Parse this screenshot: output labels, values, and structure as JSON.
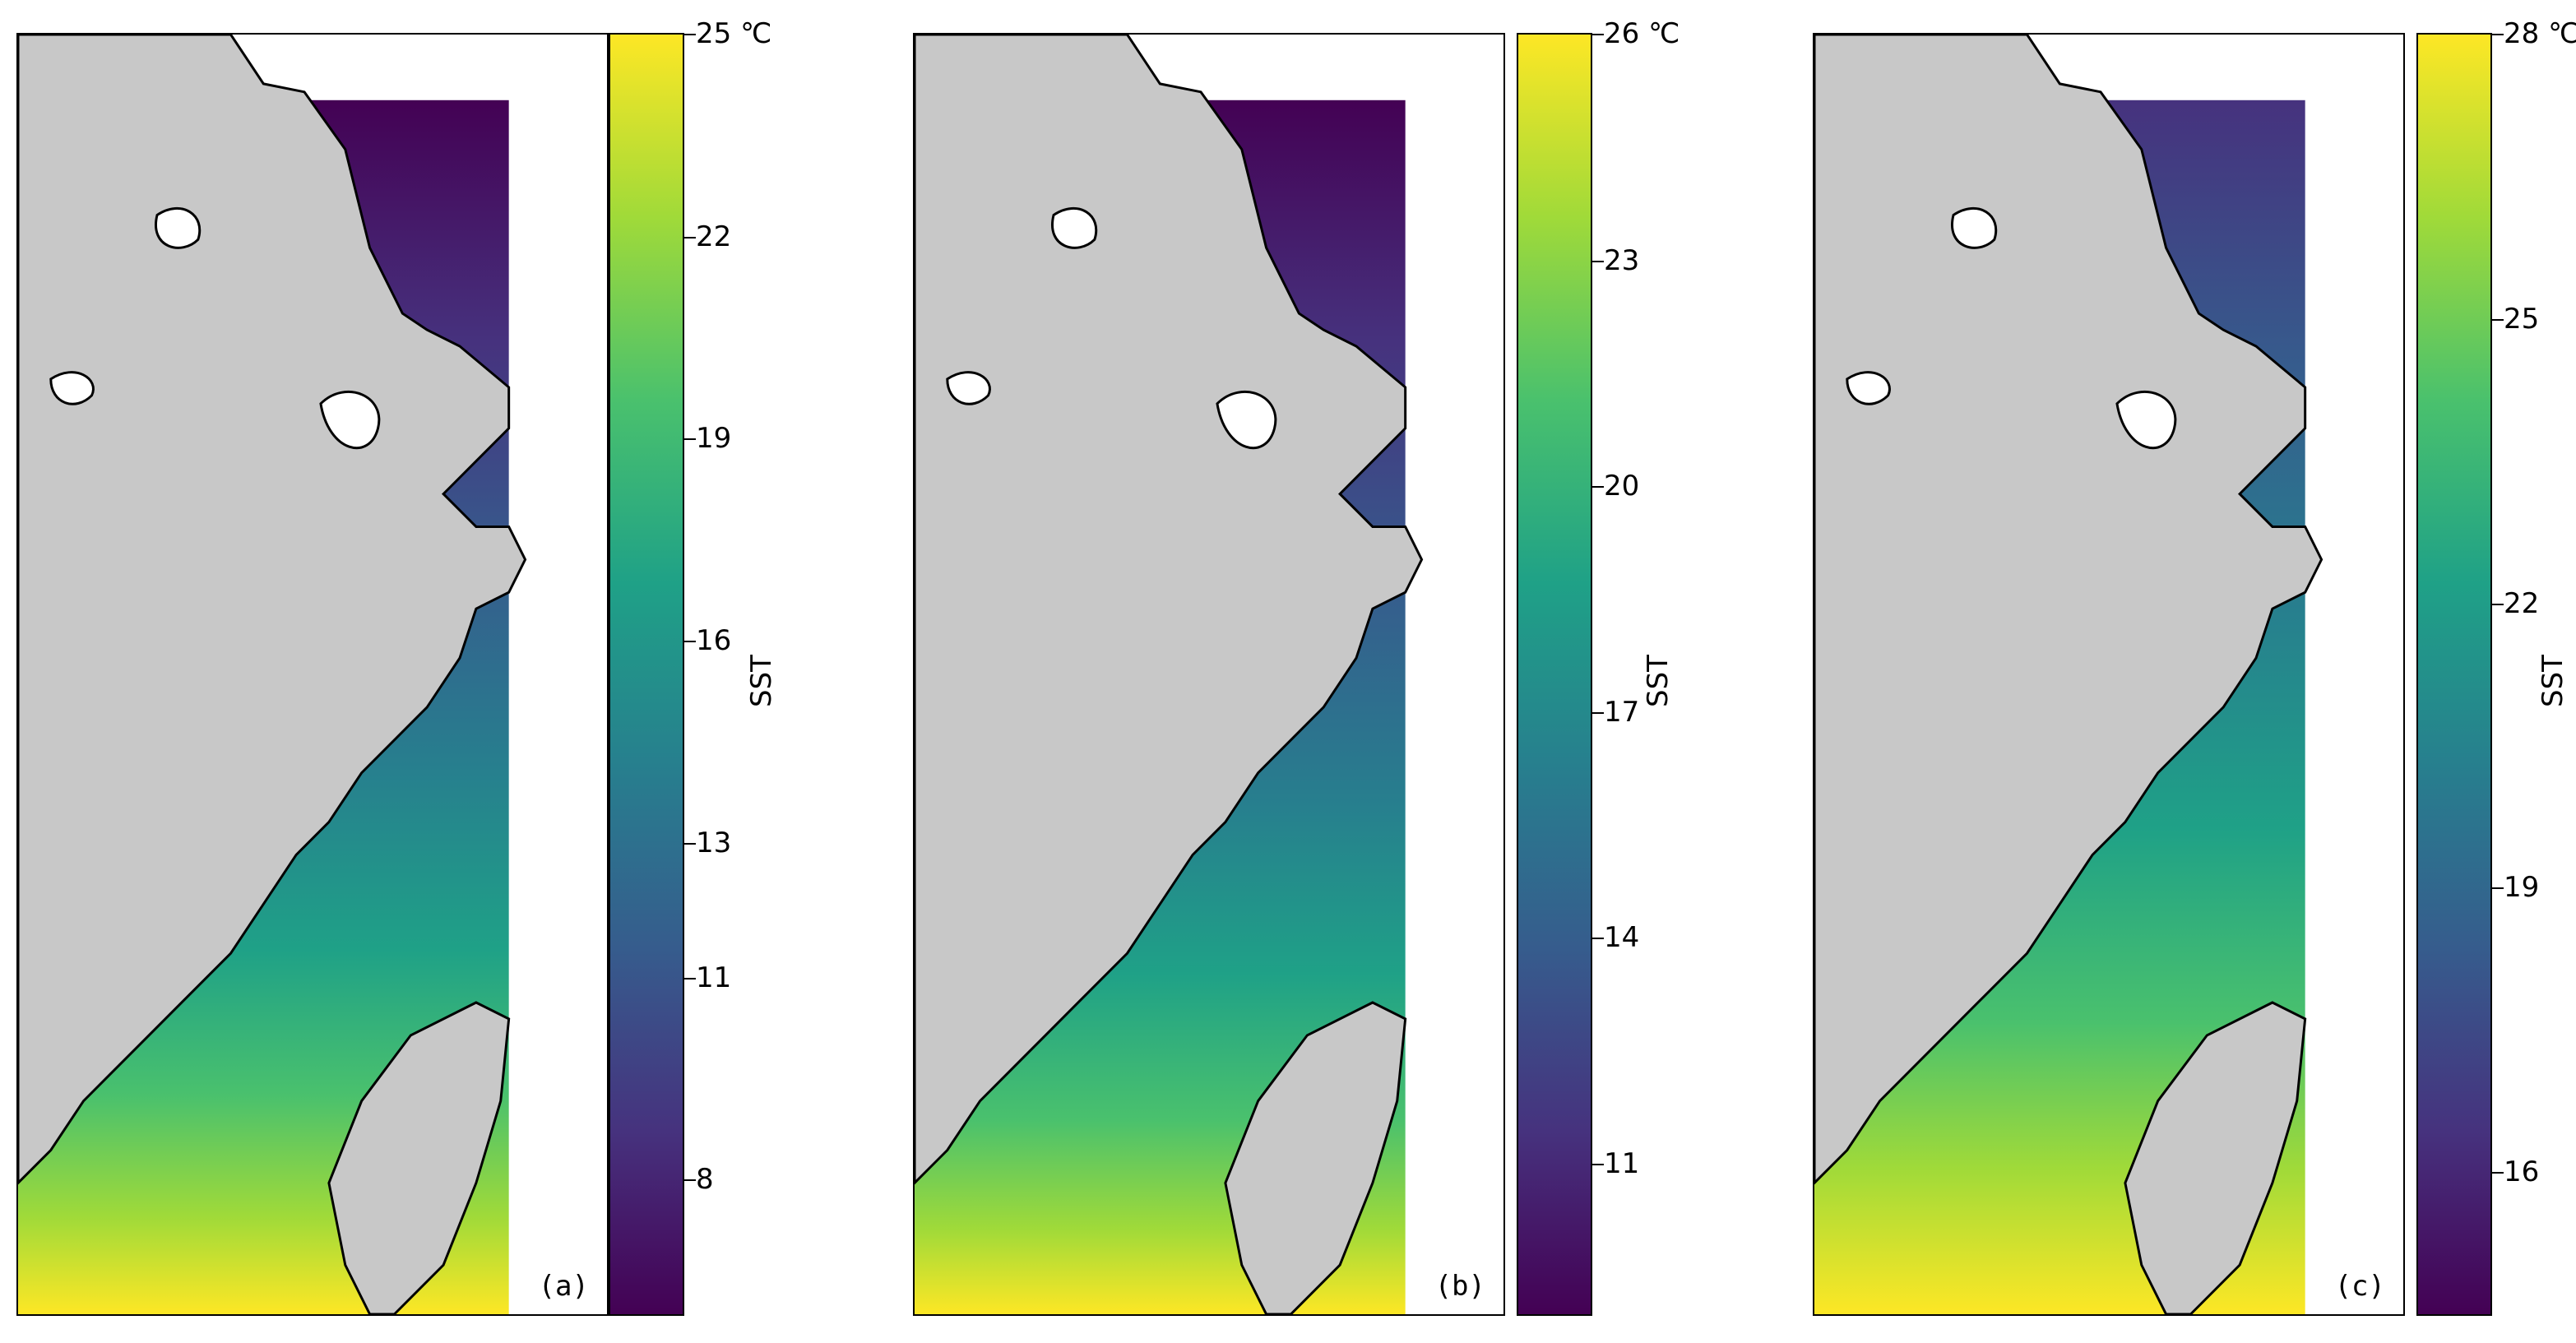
{
  "colors": {
    "land": "#c8c8c8",
    "coast": "#000000",
    "viridis": [
      "#440154",
      "#46327e",
      "#365c8d",
      "#277f8e",
      "#1fa187",
      "#4ac16d",
      "#a0da39",
      "#fde725"
    ]
  },
  "panels": [
    {
      "label": "(a)",
      "colorbar": {
        "title": "SST",
        "unit_label": "25 ℃",
        "ticks": [
          "22",
          "19",
          "16",
          "13",
          "11",
          "8"
        ],
        "vmin": 6,
        "vmax": 25,
        "tick_values": [
          22,
          19,
          16,
          13,
          11,
          8
        ]
      }
    },
    {
      "label": "(b)",
      "colorbar": {
        "title": "SST",
        "unit_label": "26 ℃",
        "ticks": [
          "23",
          "20",
          "17",
          "14",
          "11"
        ],
        "vmin": 9,
        "vmax": 26,
        "tick_values": [
          23,
          20,
          17,
          14,
          11
        ]
      }
    },
    {
      "label": "(c)",
      "colorbar": {
        "title": "SST",
        "unit_label": "28 ℃",
        "ticks": [
          "25",
          "22",
          "19",
          "16"
        ],
        "vmin": 14.5,
        "vmax": 28,
        "tick_values": [
          25,
          22,
          19,
          16
        ]
      }
    }
  ]
}
